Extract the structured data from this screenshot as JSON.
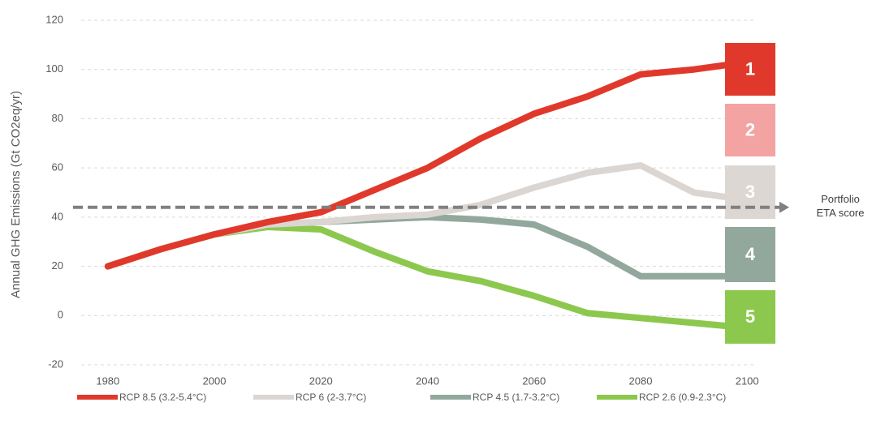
{
  "chart_data": {
    "type": "line",
    "y_label": "Annual GHG Emissions (Gt CO2eq/yr)",
    "x": [
      1980,
      1990,
      2000,
      2010,
      2020,
      2030,
      2040,
      2050,
      2060,
      2070,
      2080,
      2090,
      2100
    ],
    "xlim": [
      1975,
      2105
    ],
    "xticks": [
      1980,
      2000,
      2020,
      2040,
      2060,
      2080,
      2100
    ],
    "ylim": [
      -20,
      120
    ],
    "yticks": [
      -20,
      0,
      20,
      40,
      60,
      80,
      100,
      120
    ],
    "grid": true,
    "legend": "bottom",
    "series": [
      {
        "name": "RCP 8.5 (3.2-5.4°C)",
        "color": "#e0392b",
        "values": [
          20,
          27,
          33,
          38,
          42,
          51,
          60,
          72,
          82,
          89,
          98,
          100,
          103
        ]
      },
      {
        "name": "RCP 6 (2-3.7°C)",
        "color": "#dbd6d2",
        "values": [
          20,
          27,
          33,
          37,
          38,
          40,
          41,
          45,
          52,
          58,
          61,
          50,
          47
        ]
      },
      {
        "name": "RCP 4.5 (1.7-3.2°C)",
        "color": "#93a89d",
        "values": [
          20,
          27,
          33,
          37,
          38,
          39,
          40,
          39,
          37,
          28,
          16,
          16,
          16
        ]
      },
      {
        "name": "RCP 2.6 (0.9-2.3°C)",
        "color": "#8dc84e",
        "values": [
          20,
          27,
          33,
          36,
          35,
          26,
          18,
          14,
          8,
          1,
          -1,
          -3,
          -5
        ]
      }
    ],
    "threshold": {
      "value": 44,
      "color": "#808080",
      "label": [
        "Portfolio",
        "ETA score"
      ]
    },
    "score_boxes": [
      {
        "label": "1",
        "color": "#e0392b"
      },
      {
        "label": "2",
        "color": "#f4a3a3"
      },
      {
        "label": "3",
        "color": "#dcd7d3"
      },
      {
        "label": "4",
        "color": "#93a89d"
      },
      {
        "label": "5",
        "color": "#8dc84e"
      }
    ]
  }
}
